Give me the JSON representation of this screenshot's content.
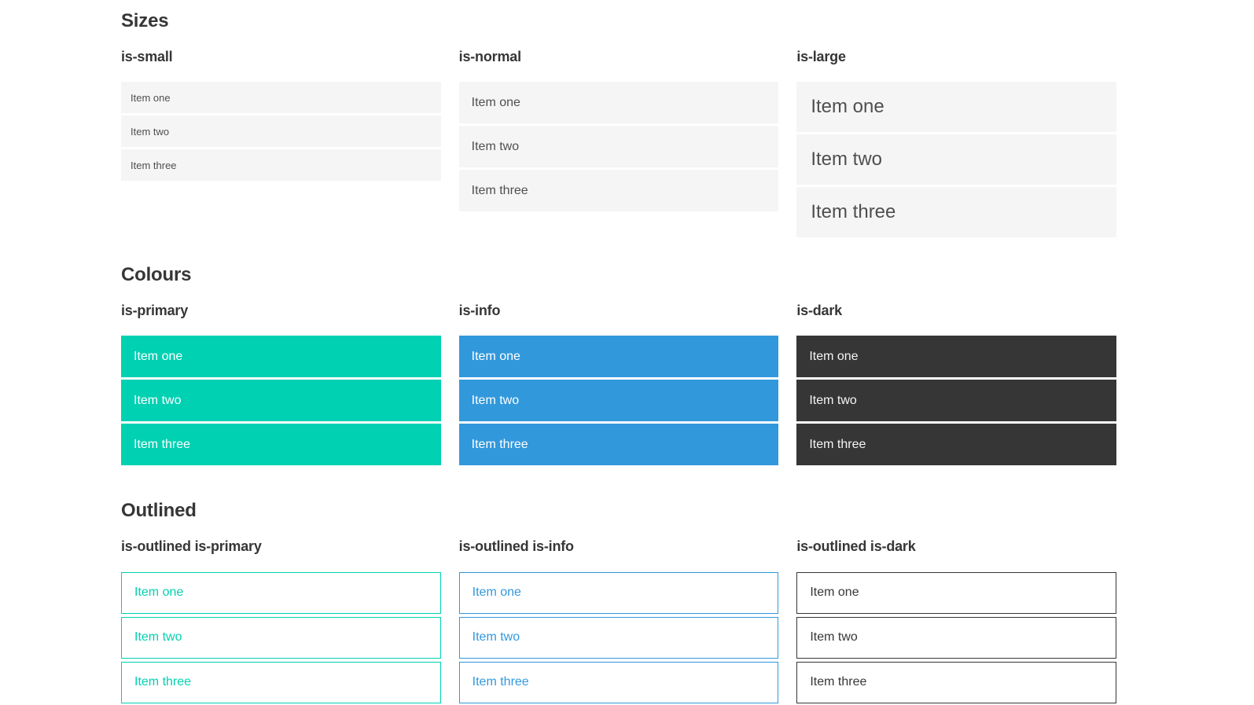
{
  "colors": {
    "primary": "#00d1b2",
    "info": "#3298dc",
    "dark": "#363636",
    "item_bg": "#f5f5f5",
    "item_text": "#4f4f4f",
    "heading_text": "#363636"
  },
  "sections": [
    {
      "title": "Sizes",
      "groups": [
        {
          "heading": "is-small",
          "items": [
            "Item one",
            "Item two",
            "Item three"
          ]
        },
        {
          "heading": "is-normal",
          "items": [
            "Item one",
            "Item two",
            "Item three"
          ]
        },
        {
          "heading": "is-large",
          "items": [
            "Item one",
            "Item two",
            "Item three"
          ]
        }
      ]
    },
    {
      "title": "Colours",
      "groups": [
        {
          "heading": "is-primary",
          "items": [
            "Item one",
            "Item two",
            "Item three"
          ]
        },
        {
          "heading": "is-info",
          "items": [
            "Item one",
            "Item two",
            "Item three"
          ]
        },
        {
          "heading": "is-dark",
          "items": [
            "Item one",
            "Item two",
            "Item three"
          ]
        }
      ]
    },
    {
      "title": "Outlined",
      "groups": [
        {
          "heading": "is-outlined is-primary",
          "items": [
            "Item one",
            "Item two",
            "Item three"
          ]
        },
        {
          "heading": "is-outlined is-info",
          "items": [
            "Item one",
            "Item two",
            "Item three"
          ]
        },
        {
          "heading": "is-outlined is-dark",
          "items": [
            "Item one",
            "Item two",
            "Item three"
          ]
        }
      ]
    }
  ]
}
